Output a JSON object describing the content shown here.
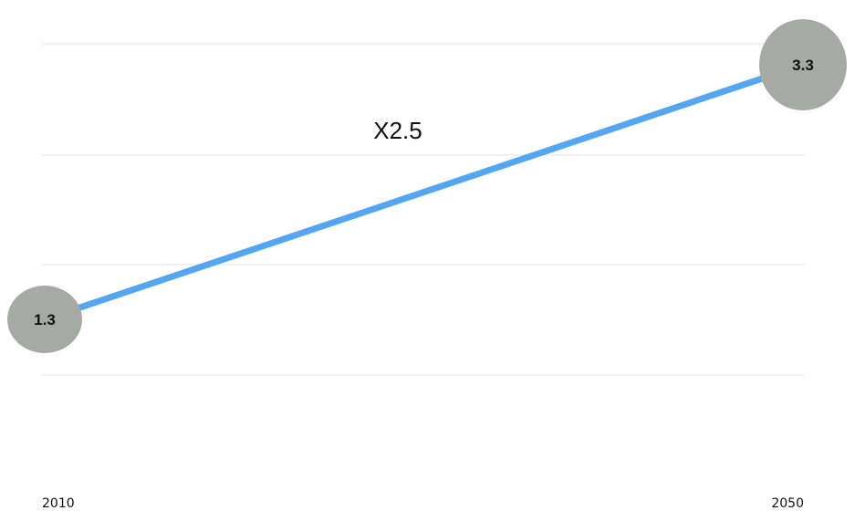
{
  "chart_data": {
    "type": "line",
    "title": "",
    "xlabel": "",
    "ylabel": "",
    "x": [
      "2010",
      "2050"
    ],
    "series": [
      {
        "values": [
          1.3,
          3.3
        ],
        "point_labels": [
          "1.3",
          "3.3"
        ]
      }
    ],
    "ylim": [
      0.5,
      3.5
    ],
    "grid": true,
    "annotation": "X2.5",
    "colors": {
      "line": "#55a6f1",
      "bubble": "#a7a9a7",
      "grid": "#e3e3e3",
      "text": "#111111"
    }
  }
}
